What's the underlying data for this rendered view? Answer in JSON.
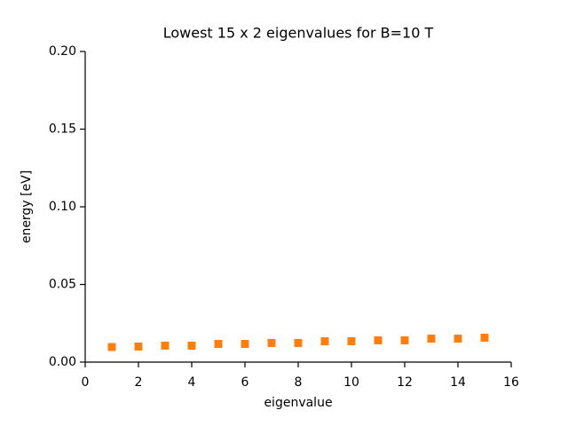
{
  "chart_data": {
    "type": "scatter",
    "title": "Lowest 15 x 2 eigenvalues for B=10 T",
    "x_label": "eigenvalue",
    "y_label": "energy [eV]",
    "x": [
      1,
      2,
      3,
      4,
      5,
      6,
      7,
      8,
      9,
      10,
      11,
      12,
      13,
      14,
      15
    ],
    "series": [
      {
        "color": "#ff7f0e",
        "marker": "square",
        "values": [
          0.0097,
          0.01,
          0.0106,
          0.0106,
          0.0117,
          0.0117,
          0.0123,
          0.0123,
          0.0134,
          0.0134,
          0.014,
          0.014,
          0.0151,
          0.0151,
          0.0157
        ]
      }
    ],
    "xlim": [
      0,
      16
    ],
    "xticks": [
      0,
      2,
      4,
      6,
      8,
      10,
      12,
      14,
      16
    ],
    "ylim": [
      0,
      0.2
    ],
    "yticks": [
      {
        "value": 0,
        "label": "0.00"
      },
      {
        "value": 0.05,
        "label": "0.05"
      },
      {
        "value": 0.1,
        "label": "0.10"
      },
      {
        "value": 0.15,
        "label": "0.15"
      },
      {
        "value": 0.2,
        "label": "0.20"
      }
    ],
    "grid": false
  }
}
